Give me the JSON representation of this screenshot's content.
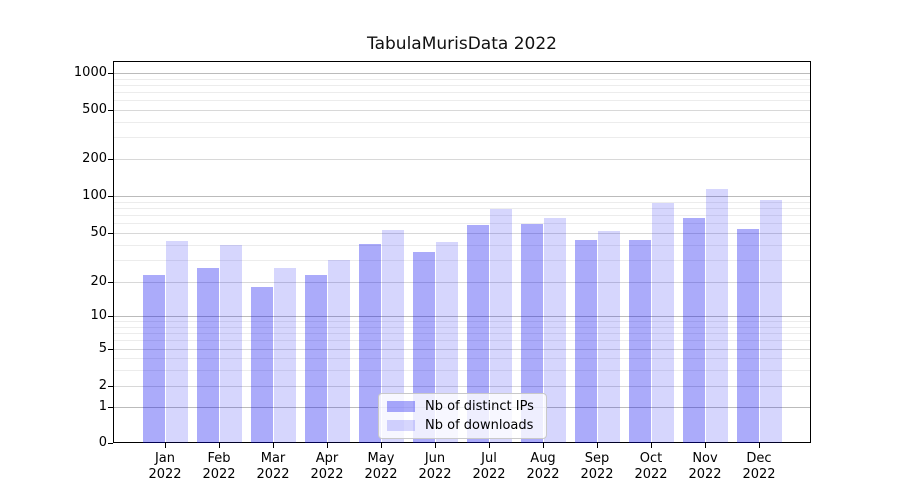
{
  "chart_data": {
    "type": "bar",
    "title": "TabulaMurisData 2022",
    "categories": [
      "Jan 2022",
      "Feb 2022",
      "Mar 2022",
      "Apr 2022",
      "May 2022",
      "Jun 2022",
      "Jul 2022",
      "Aug 2022",
      "Sep 2022",
      "Oct 2022",
      "Nov 2022",
      "Dec 2022"
    ],
    "series": [
      {
        "name": "Nb of distinct IPs",
        "key": "distinct-ips",
        "color": "#a9a9f7",
        "fill": "rgba(0,0,240,0.33)",
        "values": [
          23,
          26,
          18,
          23,
          41,
          35,
          58,
          59,
          44,
          44,
          66,
          54
        ]
      },
      {
        "name": "Nb of downloads",
        "key": "downloads",
        "color": "#d7d7fc",
        "fill": "rgba(0,0,240,0.16)",
        "values": [
          43,
          40,
          26,
          30,
          53,
          42,
          78,
          66,
          52,
          88,
          115,
          92
        ]
      }
    ],
    "yscale": "symlog",
    "yticks": [
      0,
      1,
      2,
      5,
      10,
      20,
      50,
      100,
      200,
      500,
      1000
    ],
    "ylim": [
      0,
      1250
    ],
    "grid": true,
    "legend_position": "lower center",
    "colors": {
      "grid_decade": "#bbbbbb",
      "grid_mid": "#d8d8d8",
      "grid_minor": "#ececec",
      "axis": "#000000",
      "background": "#ffffff"
    }
  }
}
